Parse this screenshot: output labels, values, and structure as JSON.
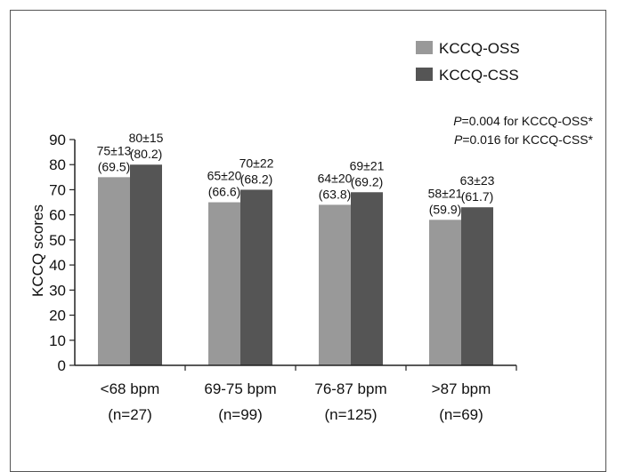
{
  "chart_data": {
    "type": "bar",
    "categories": [
      "<68 bpm",
      "69-75 bpm",
      "76-87 bpm",
      ">87 bpm"
    ],
    "category_counts": [
      "(n=27)",
      "(n=99)",
      "(n=125)",
      "(n=69)"
    ],
    "series": [
      {
        "name": "KCCQ-OSS",
        "color": "#999999",
        "values": [
          75,
          65,
          64,
          58
        ],
        "labels": [
          "75±13",
          "65±20",
          "64±20",
          "58±21"
        ],
        "sublabels": [
          "(69.5)",
          "(66.6)",
          "(63.8)",
          "(59.9)"
        ]
      },
      {
        "name": "KCCQ-CSS",
        "color": "#555555",
        "values": [
          80,
          70,
          69,
          63
        ],
        "labels": [
          "80±15",
          "70±22",
          "69±21",
          "63±23"
        ],
        "sublabels": [
          "(80.2)",
          "(68.2)",
          "(69.2)",
          "(61.7)"
        ]
      }
    ],
    "ylabel": "KCCQ scores",
    "ylim": [
      0,
      90
    ],
    "yticks": [
      "0",
      "10",
      "20",
      "30",
      "40",
      "50",
      "60",
      "70",
      "80",
      "90"
    ],
    "legend_position": "top-right",
    "grid": false,
    "annotations": [
      {
        "italic": "P",
        "text": "=0.004 for KCCQ-OSS*"
      },
      {
        "italic": "P",
        "text": "=0.016 for KCCQ-CSS*"
      }
    ]
  }
}
